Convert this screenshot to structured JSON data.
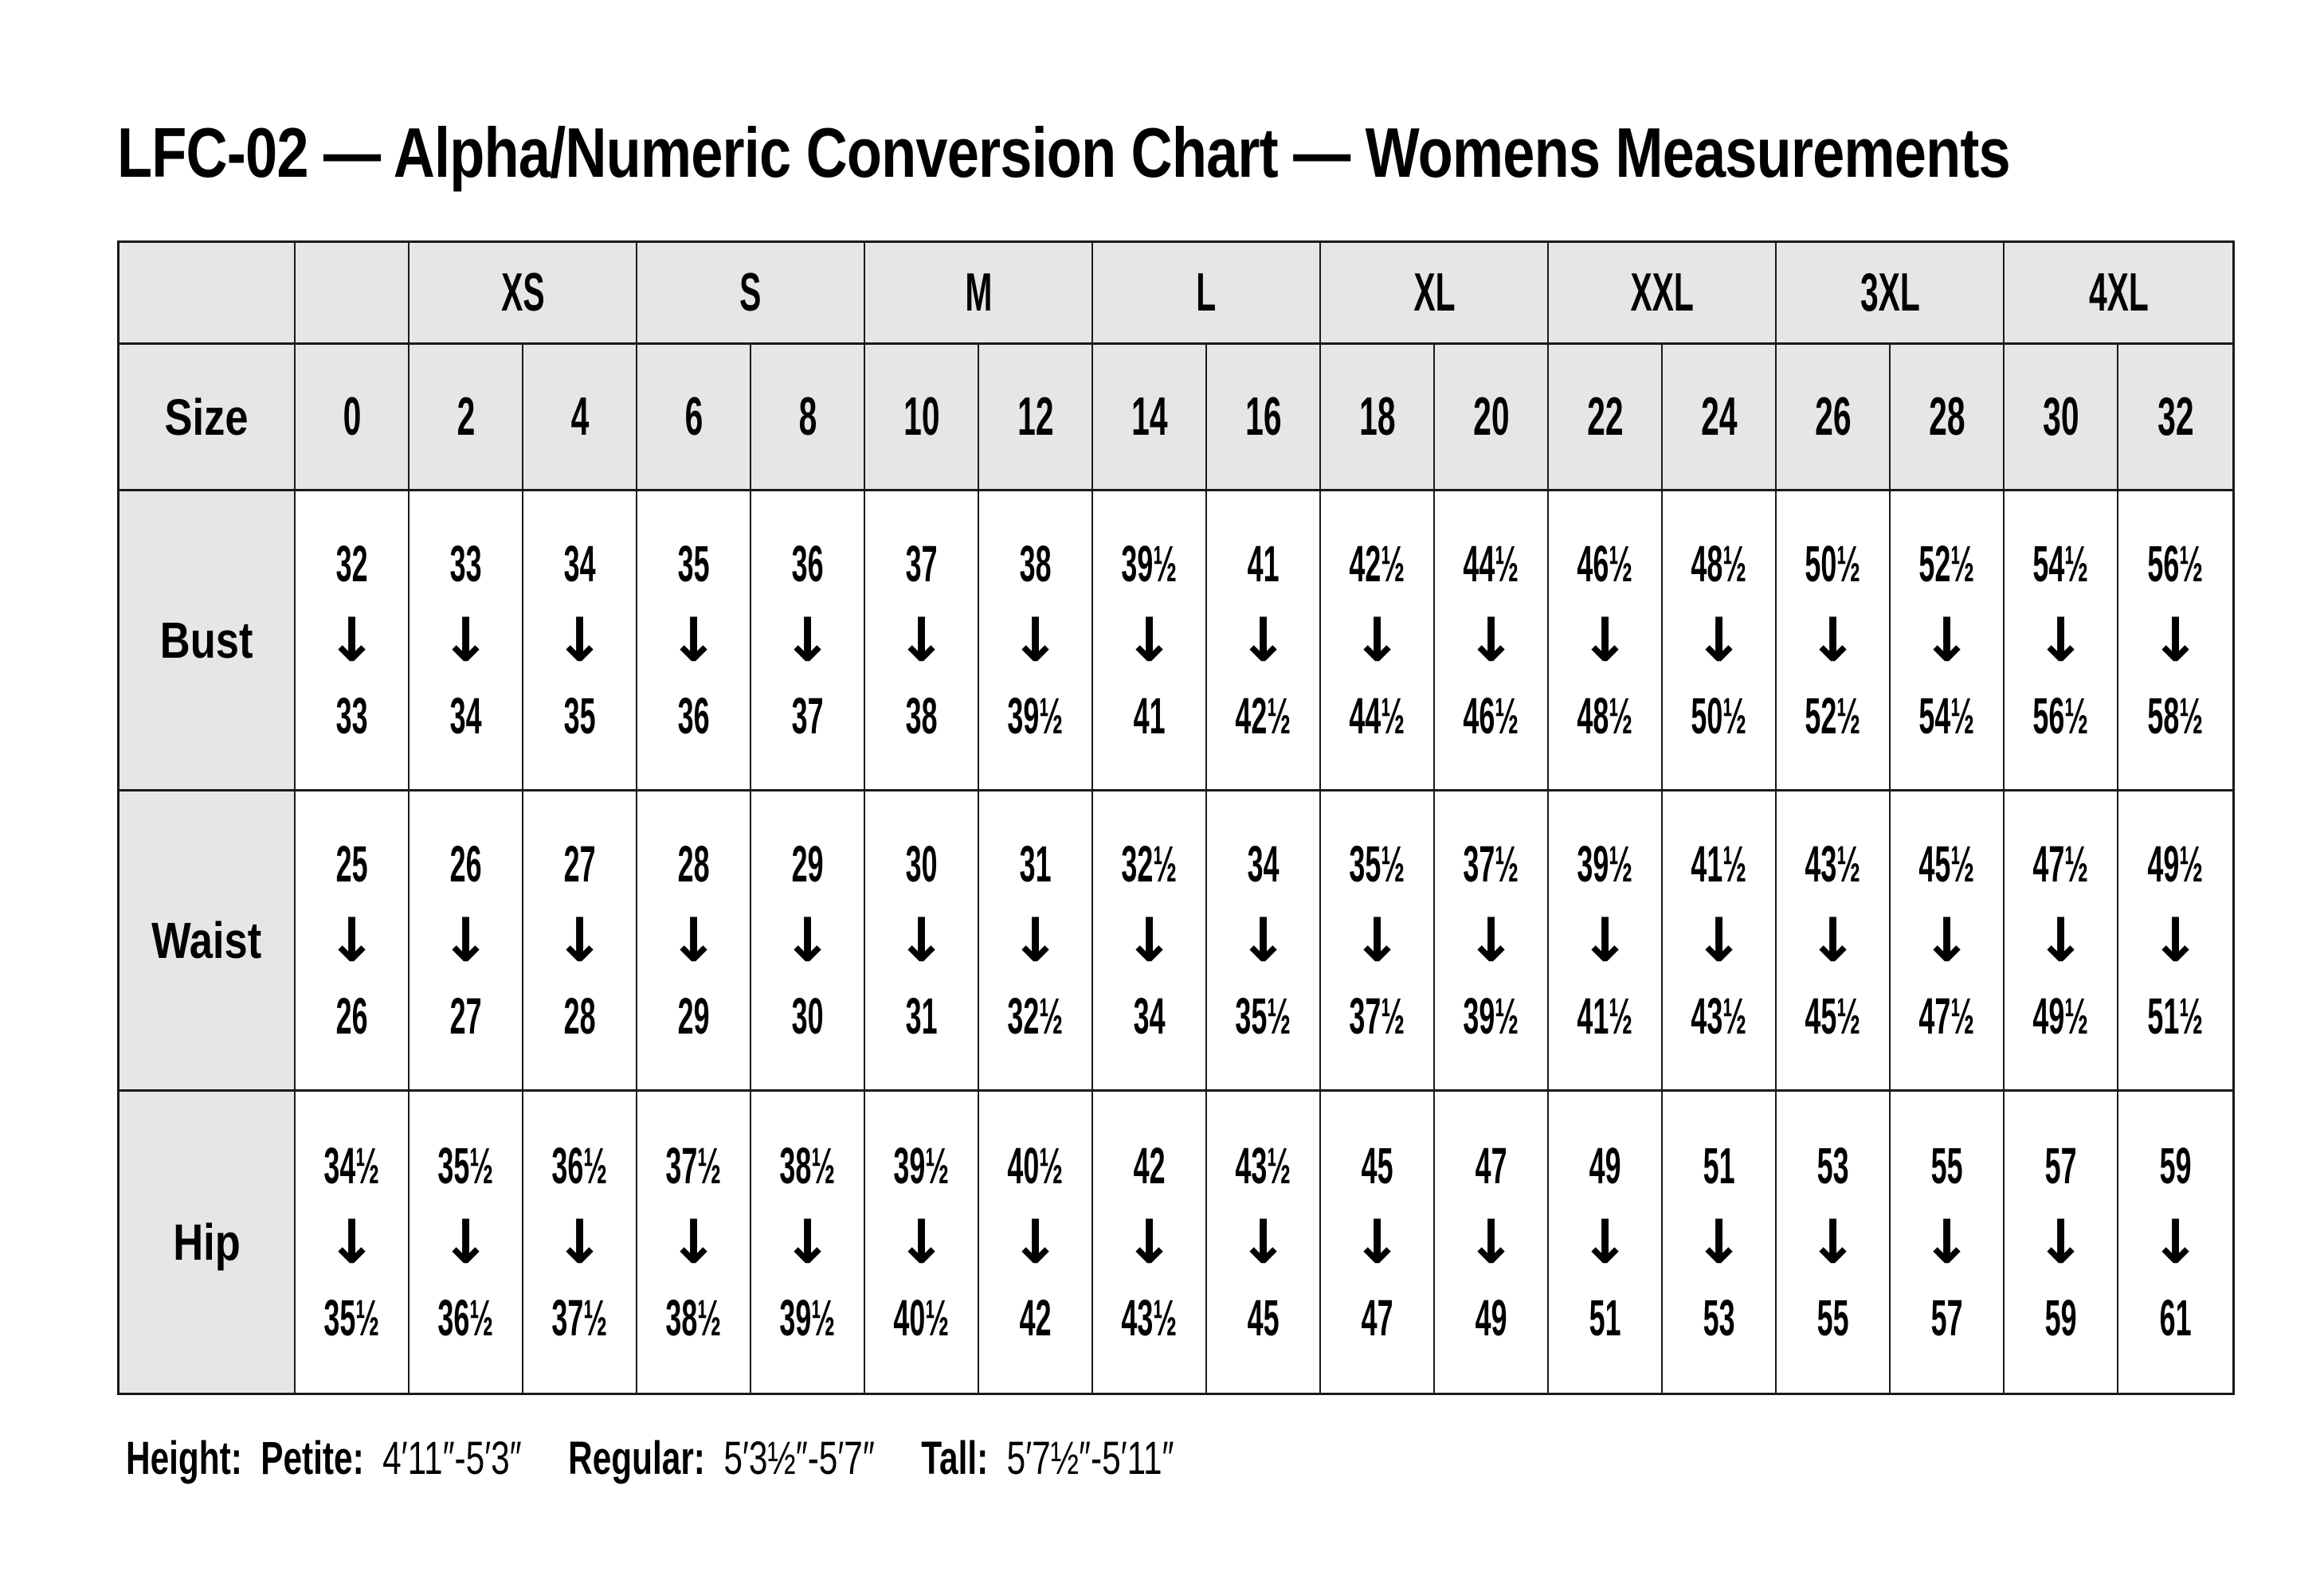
{
  "title": "LFC-02 — Alpha/Numeric Conversion Chart — Womens Measurements",
  "arrow_icon": "↓",
  "colors": {
    "header_bg": "#e6e6e6",
    "border": "#1a1a1a",
    "text": "#000000",
    "page_bg": "#ffffff"
  },
  "chart_data": {
    "type": "table",
    "title": "LFC-02 — Alpha/Numeric Conversion Chart — Womens Measurements",
    "alpha_sizes": [
      "XS",
      "S",
      "M",
      "L",
      "XL",
      "XXL",
      "3XL",
      "4XL"
    ],
    "alpha_span_note": "each alpha size spans two numeric sizes",
    "size_row_label": "Size",
    "numeric_sizes": [
      "0",
      "2",
      "4",
      "6",
      "8",
      "10",
      "12",
      "14",
      "16",
      "18",
      "20",
      "22",
      "24",
      "26",
      "28",
      "30",
      "32"
    ],
    "rows": [
      {
        "label": "Bust",
        "ranges": [
          {
            "from": "32",
            "to": "33"
          },
          {
            "from": "33",
            "to": "34"
          },
          {
            "from": "34",
            "to": "35"
          },
          {
            "from": "35",
            "to": "36"
          },
          {
            "from": "36",
            "to": "37"
          },
          {
            "from": "37",
            "to": "38"
          },
          {
            "from": "38",
            "to": "39½"
          },
          {
            "from": "39½",
            "to": "41"
          },
          {
            "from": "41",
            "to": "42½"
          },
          {
            "from": "42½",
            "to": "44½"
          },
          {
            "from": "44½",
            "to": "46½"
          },
          {
            "from": "46½",
            "to": "48½"
          },
          {
            "from": "48½",
            "to": "50½"
          },
          {
            "from": "50½",
            "to": "52½"
          },
          {
            "from": "52½",
            "to": "54½"
          },
          {
            "from": "54½",
            "to": "56½"
          },
          {
            "from": "56½",
            "to": "58½"
          }
        ]
      },
      {
        "label": "Waist",
        "ranges": [
          {
            "from": "25",
            "to": "26"
          },
          {
            "from": "26",
            "to": "27"
          },
          {
            "from": "27",
            "to": "28"
          },
          {
            "from": "28",
            "to": "29"
          },
          {
            "from": "29",
            "to": "30"
          },
          {
            "from": "30",
            "to": "31"
          },
          {
            "from": "31",
            "to": "32½"
          },
          {
            "from": "32½",
            "to": "34"
          },
          {
            "from": "34",
            "to": "35½"
          },
          {
            "from": "35½",
            "to": "37½"
          },
          {
            "from": "37½",
            "to": "39½"
          },
          {
            "from": "39½",
            "to": "41½"
          },
          {
            "from": "41½",
            "to": "43½"
          },
          {
            "from": "43½",
            "to": "45½"
          },
          {
            "from": "45½",
            "to": "47½"
          },
          {
            "from": "47½",
            "to": "49½"
          },
          {
            "from": "49½",
            "to": "51½"
          }
        ]
      },
      {
        "label": "Hip",
        "ranges": [
          {
            "from": "34½",
            "to": "35½"
          },
          {
            "from": "35½",
            "to": "36½"
          },
          {
            "from": "36½",
            "to": "37½"
          },
          {
            "from": "37½",
            "to": "38½"
          },
          {
            "from": "38½",
            "to": "39½"
          },
          {
            "from": "39½",
            "to": "40½"
          },
          {
            "from": "40½",
            "to": "42"
          },
          {
            "from": "42",
            "to": "43½"
          },
          {
            "from": "43½",
            "to": "45"
          },
          {
            "from": "45",
            "to": "47"
          },
          {
            "from": "47",
            "to": "49"
          },
          {
            "from": "49",
            "to": "51"
          },
          {
            "from": "51",
            "to": "53"
          },
          {
            "from": "53",
            "to": "55"
          },
          {
            "from": "55",
            "to": "57"
          },
          {
            "from": "57",
            "to": "59"
          },
          {
            "from": "59",
            "to": "61"
          }
        ]
      }
    ]
  },
  "footer": {
    "height_label": "Height:",
    "segments": [
      {
        "label": "Petite:",
        "value": "4′11″-5′3″"
      },
      {
        "label": "Regular:",
        "value": "5′3½″-5′7″"
      },
      {
        "label": "Tall:",
        "value": "5′7½″-5′11″"
      }
    ]
  }
}
